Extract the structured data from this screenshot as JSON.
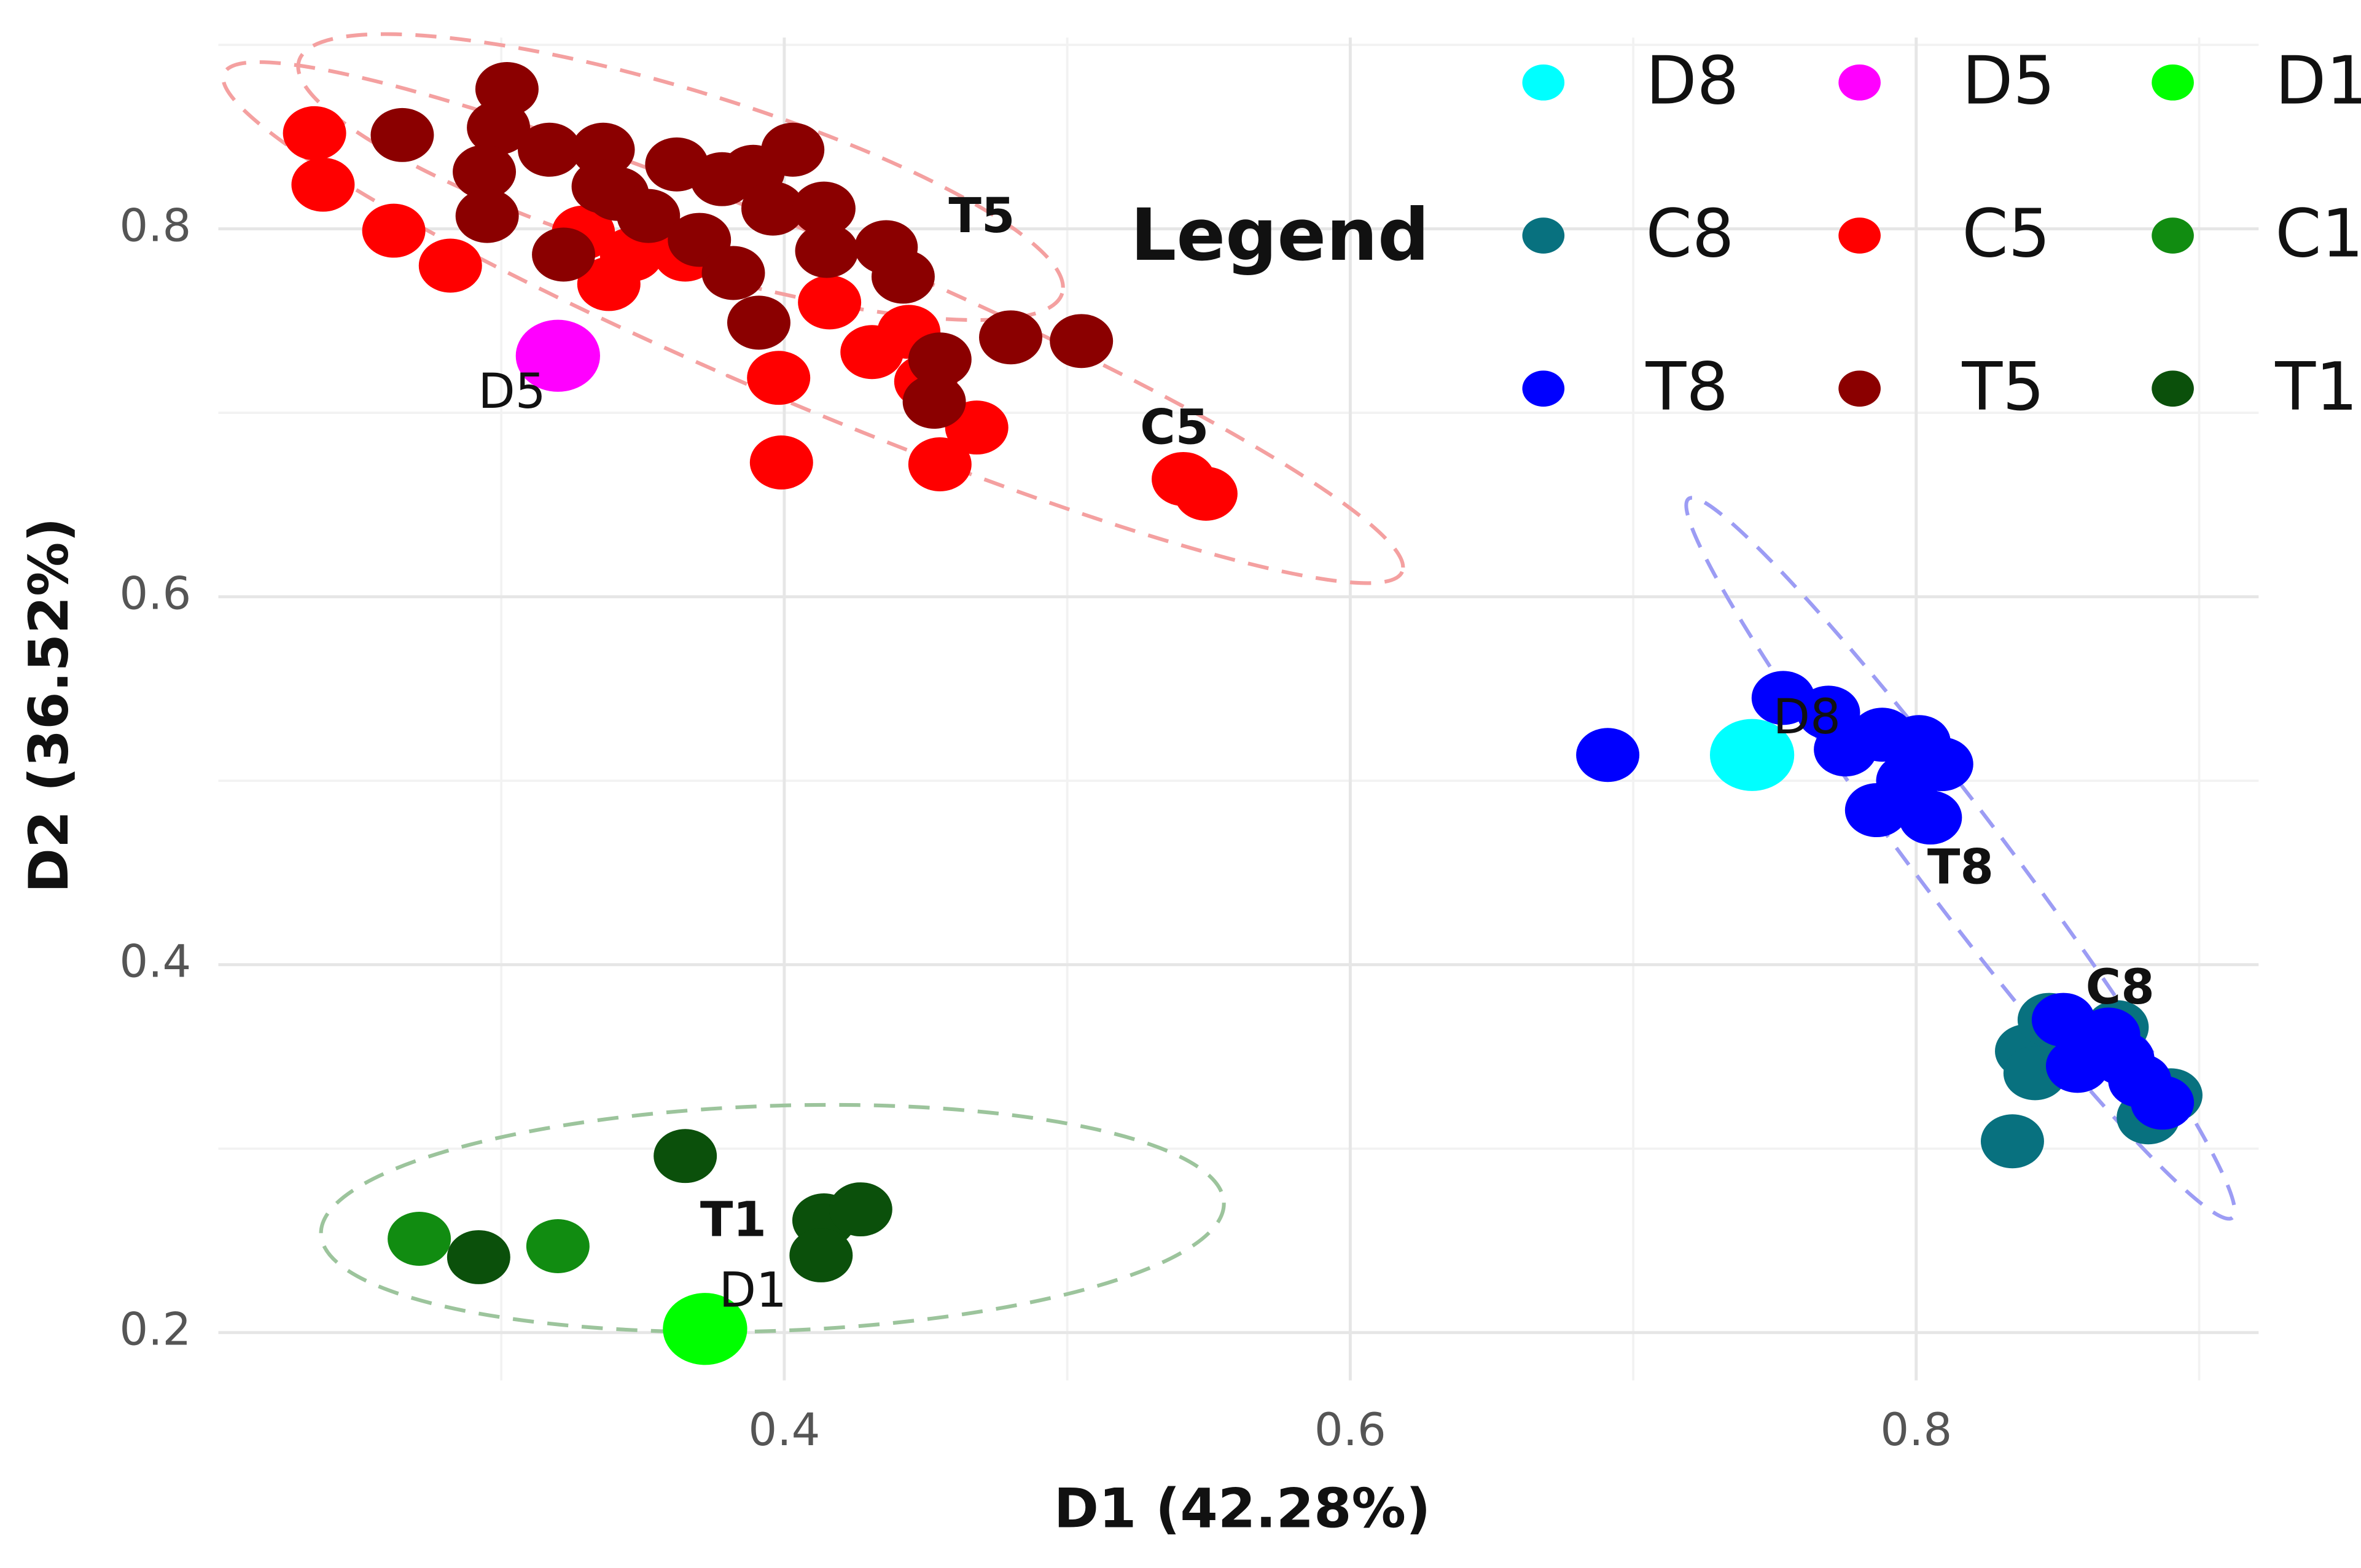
{
  "chart_data": {
    "type": "scatter",
    "xlabel": "D1 (42.28%)",
    "ylabel": "D2 (36.52%)",
    "legend_title": "Legend",
    "xlim": [
      0.2,
      0.921
    ],
    "ylim": [
      0.174,
      0.904
    ],
    "xticks": [
      0.4,
      0.6,
      0.8
    ],
    "yticks": [
      0.2,
      0.4,
      0.6,
      0.8
    ],
    "grid": true,
    "legend": "upper right",
    "annotations": [
      "T5",
      "C5",
      "D5",
      "D8",
      "T8",
      "C8",
      "T1",
      "D1"
    ],
    "series": [
      {
        "name": "D8",
        "color": "#00ffff",
        "x": [
          0.742
        ],
        "y": [
          0.514
        ]
      },
      {
        "name": "D5",
        "color": "#ff00ff",
        "x": [
          0.32
        ],
        "y": [
          0.731
        ]
      },
      {
        "name": "D1",
        "color": "#00ff00",
        "x": [
          0.372
        ],
        "y": [
          0.202
        ]
      },
      {
        "name": "C8",
        "color": "#08717f",
        "x": [
          0.834,
          0.839,
          0.842,
          0.847,
          0.871,
          0.882,
          0.89
        ],
        "y": [
          0.304,
          0.353,
          0.341,
          0.37,
          0.366,
          0.317,
          0.329
        ]
      },
      {
        "name": "C5",
        "color": "#ff0000",
        "x": [
          0.234,
          0.237,
          0.262,
          0.282,
          0.338,
          0.346,
          0.365,
          0.398,
          0.399,
          0.416,
          0.431,
          0.444,
          0.45,
          0.455,
          0.468,
          0.541,
          0.549,
          0.329
        ],
        "y": [
          0.852,
          0.824,
          0.799,
          0.78,
          0.77,
          0.786,
          0.786,
          0.719,
          0.673,
          0.76,
          0.733,
          0.744,
          0.717,
          0.672,
          0.692,
          0.664,
          0.656,
          0.798
        ]
      },
      {
        "name": "C1",
        "color": "#118c11",
        "x": [
          0.271,
          0.32
        ],
        "y": [
          0.251,
          0.247
        ]
      },
      {
        "name": "T8",
        "color": "#0000ff",
        "x": [
          0.691,
          0.753,
          0.769,
          0.775,
          0.788,
          0.801,
          0.809,
          0.786,
          0.797,
          0.805,
          0.852,
          0.857,
          0.868,
          0.879,
          0.887,
          0.873
        ],
        "y": [
          0.514,
          0.545,
          0.537,
          0.517,
          0.525,
          0.521,
          0.509,
          0.484,
          0.5,
          0.48,
          0.37,
          0.345,
          0.362,
          0.337,
          0.325,
          0.349
        ]
      },
      {
        "name": "T5",
        "color": "#8b0000",
        "x": [
          0.265,
          0.302,
          0.299,
          0.294,
          0.295,
          0.317,
          0.322,
          0.336,
          0.341,
          0.352,
          0.362,
          0.378,
          0.389,
          0.403,
          0.396,
          0.414,
          0.415,
          0.37,
          0.382,
          0.391,
          0.436,
          0.442,
          0.455,
          0.453,
          0.48,
          0.505,
          0.336
        ],
        "y": [
          0.851,
          0.876,
          0.855,
          0.831,
          0.807,
          0.843,
          0.786,
          0.843,
          0.819,
          0.807,
          0.835,
          0.827,
          0.831,
          0.843,
          0.811,
          0.811,
          0.788,
          0.794,
          0.776,
          0.749,
          0.79,
          0.774,
          0.729,
          0.706,
          0.741,
          0.739,
          0.823
        ]
      },
      {
        "name": "T1",
        "color": "#0b500b",
        "x": [
          0.292,
          0.365,
          0.414,
          0.427,
          0.413
        ],
        "y": [
          0.241,
          0.296,
          0.261,
          0.267,
          0.242
        ]
      }
    ]
  }
}
